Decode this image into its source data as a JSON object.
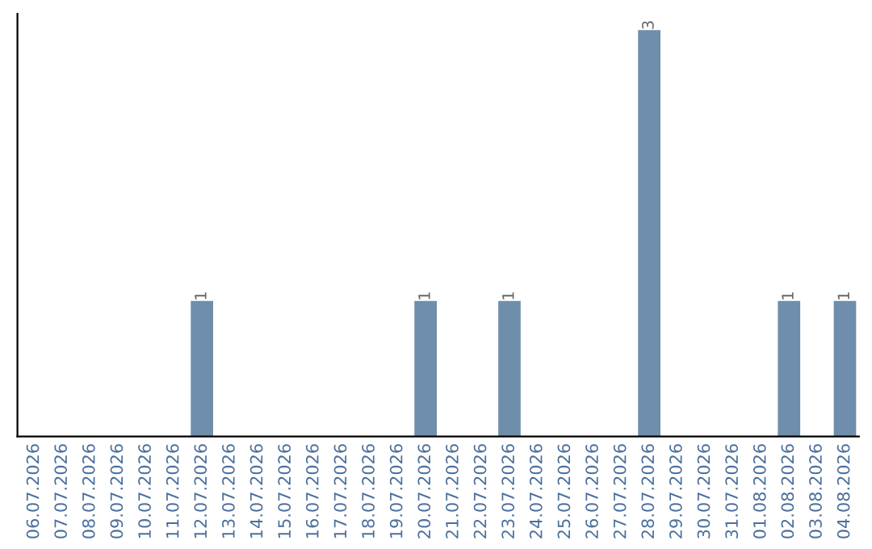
{
  "chart_data": {
    "type": "bar",
    "categories": [
      "06.07.2026",
      "07.07.2026",
      "08.07.2026",
      "09.07.2026",
      "10.07.2026",
      "11.07.2026",
      "12.07.2026",
      "13.07.2026",
      "14.07.2026",
      "15.07.2026",
      "16.07.2026",
      "17.07.2026",
      "18.07.2026",
      "19.07.2026",
      "20.07.2026",
      "21.07.2026",
      "22.07.2026",
      "23.07.2026",
      "24.07.2026",
      "25.07.2026",
      "26.07.2026",
      "27.07.2026",
      "28.07.2026",
      "29.07.2026",
      "30.07.2026",
      "31.07.2026",
      "01.08.2026",
      "02.08.2026",
      "03.08.2026",
      "04.08.2026"
    ],
    "values": [
      0,
      0,
      0,
      0,
      0,
      0,
      1,
      0,
      0,
      0,
      0,
      0,
      0,
      0,
      1,
      0,
      0,
      1,
      0,
      0,
      0,
      0,
      3,
      0,
      0,
      0,
      0,
      1,
      0,
      1
    ],
    "value_labels": [
      null,
      null,
      null,
      null,
      null,
      null,
      "1",
      null,
      null,
      null,
      null,
      null,
      null,
      null,
      "1",
      null,
      null,
      "1",
      null,
      null,
      null,
      null,
      "3",
      null,
      null,
      null,
      null,
      "1",
      null,
      "1"
    ],
    "color": "#6e8eab",
    "grid": false,
    "legend": false
  }
}
